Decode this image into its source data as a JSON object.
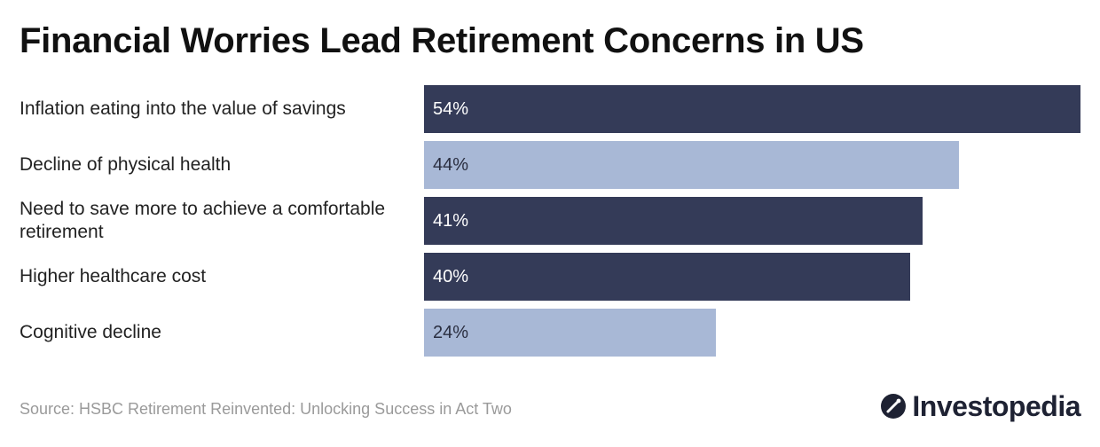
{
  "title": "Financial Worries Lead Retirement Concerns in US",
  "source": "Source: HSBC Retirement Reinvented: Unlocking Success in Act Two",
  "logo": "Investopedia",
  "colors": {
    "dark": "#343b58",
    "light": "#a8b8d6",
    "dark_text": "#ffffff",
    "light_text": "#2a2e40"
  },
  "chart_data": {
    "type": "bar",
    "orientation": "horizontal",
    "categories": [
      "Inflation eating into the value of savings",
      "Decline of physical health",
      "Need to save more to achieve a comfortable retirement",
      "Higher healthcare cost",
      "Cognitive decline"
    ],
    "values": [
      54,
      44,
      41,
      40,
      24
    ],
    "value_labels": [
      "54%",
      "44%",
      "41%",
      "40%",
      "24%"
    ],
    "bar_colors": [
      "#343b58",
      "#a8b8d6",
      "#343b58",
      "#343b58",
      "#a8b8d6"
    ],
    "xlim": [
      0,
      54
    ],
    "grid": false,
    "legend": "none"
  }
}
